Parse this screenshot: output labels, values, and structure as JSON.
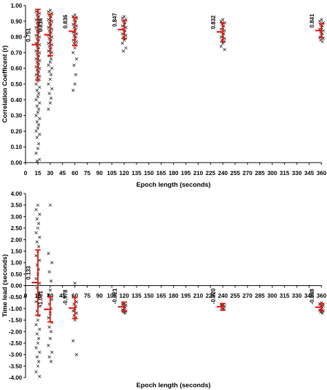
{
  "colors": {
    "mean_bar": "#e8190f",
    "points": "#000000",
    "axis": "#000000",
    "background": "#ffffff"
  },
  "chart_data": [
    {
      "type": "scatter",
      "title": "",
      "xlabel": "Epoch length (seconds)",
      "ylabel": "Correlation Coefficent (r)",
      "xlim": [
        0,
        360
      ],
      "ylim": [
        0,
        1.0
      ],
      "x_ticks": [
        "0",
        "15",
        "30",
        "45",
        "60",
        "75",
        "90",
        "105",
        "120",
        "135",
        "150",
        "165",
        "180",
        "195",
        "210",
        "225",
        "240",
        "255",
        "270",
        "285",
        "300",
        "315",
        "330",
        "345",
        "360"
      ],
      "y_ticks": [
        "0.00",
        "0.10",
        "0.20",
        "0.30",
        "0.40",
        "0.50",
        "0.60",
        "0.70",
        "0.80",
        "0.90",
        "1.00"
      ],
      "grid": false,
      "groups": [
        {
          "x": 15,
          "label": "0.751",
          "mean": 0.751,
          "upper": 0.975,
          "lower": 0.525
        },
        {
          "x": 30,
          "label": "0.814",
          "mean": 0.814,
          "upper": 0.945,
          "lower": 0.68
        },
        {
          "x": 60,
          "label": "0.836",
          "mean": 0.836,
          "upper": 0.925,
          "lower": 0.745
        },
        {
          "x": 120,
          "label": "0.847",
          "mean": 0.847,
          "upper": 0.905,
          "lower": 0.79
        },
        {
          "x": 240,
          "label": "0.832",
          "mean": 0.832,
          "upper": 0.89,
          "lower": 0.77
        },
        {
          "x": 360,
          "label": "0.841",
          "mean": 0.841,
          "upper": 0.885,
          "lower": 0.795
        }
      ],
      "points": [
        {
          "x": 15,
          "y": [
            0.97,
            0.96,
            0.95,
            0.94,
            0.93,
            0.92,
            0.91,
            0.9,
            0.89,
            0.88,
            0.87,
            0.86,
            0.85,
            0.84,
            0.83,
            0.82,
            0.81,
            0.8,
            0.79,
            0.78,
            0.77,
            0.76,
            0.75,
            0.74,
            0.73,
            0.72,
            0.71,
            0.7,
            0.69,
            0.68,
            0.67,
            0.66,
            0.65,
            0.64,
            0.63,
            0.62,
            0.61,
            0.6,
            0.59,
            0.58,
            0.57,
            0.56,
            0.55,
            0.54,
            0.53,
            0.52,
            0.5,
            0.48,
            0.46,
            0.44,
            0.42,
            0.4,
            0.38,
            0.36,
            0.34,
            0.32,
            0.3,
            0.28,
            0.26,
            0.24,
            0.22,
            0.2,
            0.18,
            0.16,
            0.12,
            0.09,
            0.06,
            0.02,
            0.01
          ]
        },
        {
          "x": 30,
          "y": [
            0.97,
            0.96,
            0.95,
            0.94,
            0.93,
            0.92,
            0.91,
            0.9,
            0.89,
            0.88,
            0.87,
            0.86,
            0.85,
            0.84,
            0.83,
            0.82,
            0.81,
            0.8,
            0.79,
            0.78,
            0.77,
            0.76,
            0.75,
            0.74,
            0.73,
            0.72,
            0.71,
            0.7,
            0.68,
            0.66,
            0.64,
            0.62,
            0.6,
            0.58,
            0.56,
            0.53,
            0.5,
            0.47,
            0.44,
            0.41,
            0.38,
            0.34
          ]
        },
        {
          "x": 60,
          "y": [
            0.94,
            0.93,
            0.92,
            0.91,
            0.9,
            0.89,
            0.88,
            0.87,
            0.86,
            0.85,
            0.84,
            0.83,
            0.82,
            0.81,
            0.8,
            0.79,
            0.78,
            0.77,
            0.76,
            0.75,
            0.73,
            0.7,
            0.66,
            0.62,
            0.56,
            0.5,
            0.46
          ]
        },
        {
          "x": 120,
          "y": [
            0.93,
            0.92,
            0.91,
            0.9,
            0.89,
            0.88,
            0.87,
            0.86,
            0.85,
            0.84,
            0.83,
            0.82,
            0.81,
            0.8,
            0.79,
            0.78,
            0.76,
            0.73,
            0.71
          ]
        },
        {
          "x": 240,
          "y": [
            0.91,
            0.9,
            0.89,
            0.88,
            0.87,
            0.86,
            0.85,
            0.84,
            0.83,
            0.82,
            0.81,
            0.8,
            0.79,
            0.78,
            0.77,
            0.76,
            0.74,
            0.72
          ]
        },
        {
          "x": 360,
          "y": [
            0.91,
            0.9,
            0.89,
            0.88,
            0.87,
            0.86,
            0.85,
            0.84,
            0.83,
            0.82,
            0.81,
            0.8,
            0.79,
            0.78,
            0.77
          ]
        }
      ]
    },
    {
      "type": "scatter",
      "title": "",
      "xlabel": "Epoch length (seconds)",
      "ylabel": "Time lead (seconds)",
      "xlim": [
        0,
        360
      ],
      "ylim": [
        -4.0,
        4.0
      ],
      "x_ticks": [
        "0",
        "15",
        "30",
        "45",
        "60",
        "75",
        "90",
        "105",
        "120",
        "135",
        "150",
        "165",
        "180",
        "195",
        "210",
        "225",
        "240",
        "255",
        "270",
        "285",
        "300",
        "315",
        "330",
        "345",
        "360"
      ],
      "y_ticks": [
        "-4.00",
        "-3.50",
        "-3.00",
        "-2.50",
        "-2.00",
        "-1.50",
        "-1.00",
        "-0.50",
        "0.00",
        "0.50",
        "1.00",
        "1.50",
        "2.00",
        "2.50",
        "3.00",
        "3.50",
        "4.00"
      ],
      "grid": false,
      "groups": [
        {
          "x": 15,
          "label": "0.133",
          "mean": 0.133,
          "upper": 1.55,
          "lower": -1.29
        },
        {
          "x": 30,
          "label": "-1.031",
          "mean": -1.031,
          "upper": -0.48,
          "lower": -1.58
        },
        {
          "x": 60,
          "label": "-0.978",
          "mean": -0.978,
          "upper": -0.52,
          "lower": -1.43
        },
        {
          "x": 120,
          "label": "-0.921",
          "mean": -0.921,
          "upper": -0.72,
          "lower": -1.12
        },
        {
          "x": 240,
          "label": "-0.920",
          "mean": -0.92,
          "upper": -0.78,
          "lower": -1.06
        },
        {
          "x": 360,
          "label": "-0.938",
          "mean": -0.938,
          "upper": -0.78,
          "lower": -1.1
        }
      ],
      "points": [
        {
          "x": 15,
          "y": [
            3.5,
            3.3,
            3.1,
            2.9,
            2.7,
            2.5,
            2.3,
            2.1,
            1.9,
            1.7,
            1.5,
            1.3,
            1.1,
            0.9,
            0.7,
            0.5,
            0.3,
            0.1,
            -0.1,
            -0.3,
            -0.5,
            -0.7,
            -0.9,
            -1.1,
            -1.3,
            -1.5,
            -1.7,
            -1.9,
            -2.1,
            -2.3,
            -2.5,
            -2.7,
            -2.9,
            -3.1,
            -3.3,
            -3.5,
            -3.75,
            -3.95
          ]
        },
        {
          "x": 30,
          "y": [
            3.5,
            1.4,
            1.0,
            0.6,
            0.2,
            -0.2,
            -0.4,
            -0.6,
            -0.8,
            -1.0,
            -1.2,
            -1.4,
            -1.6,
            -1.8,
            -2.0,
            -2.3,
            -2.6,
            -2.9,
            -3.1,
            -3.3
          ]
        },
        {
          "x": 60,
          "y": [
            0.1,
            -0.5,
            -0.7,
            -0.8,
            -0.9,
            -1.0,
            -1.1,
            -1.2,
            -1.3,
            -1.4,
            -1.5,
            -2.4,
            -3.0
          ]
        },
        {
          "x": 120,
          "y": [
            -0.75,
            -0.8,
            -0.85,
            -0.9,
            -0.95,
            -1.0,
            -1.05,
            -1.1,
            -1.15,
            -1.2
          ]
        },
        {
          "x": 240,
          "y": [
            -0.8,
            -0.85,
            -0.9,
            -0.95,
            -1.0,
            -1.05
          ]
        },
        {
          "x": 360,
          "y": [
            -0.75,
            -0.8,
            -0.85,
            -0.9,
            -0.95,
            -1.0,
            -1.05,
            -1.1,
            -1.15,
            -1.2
          ]
        }
      ]
    }
  ]
}
